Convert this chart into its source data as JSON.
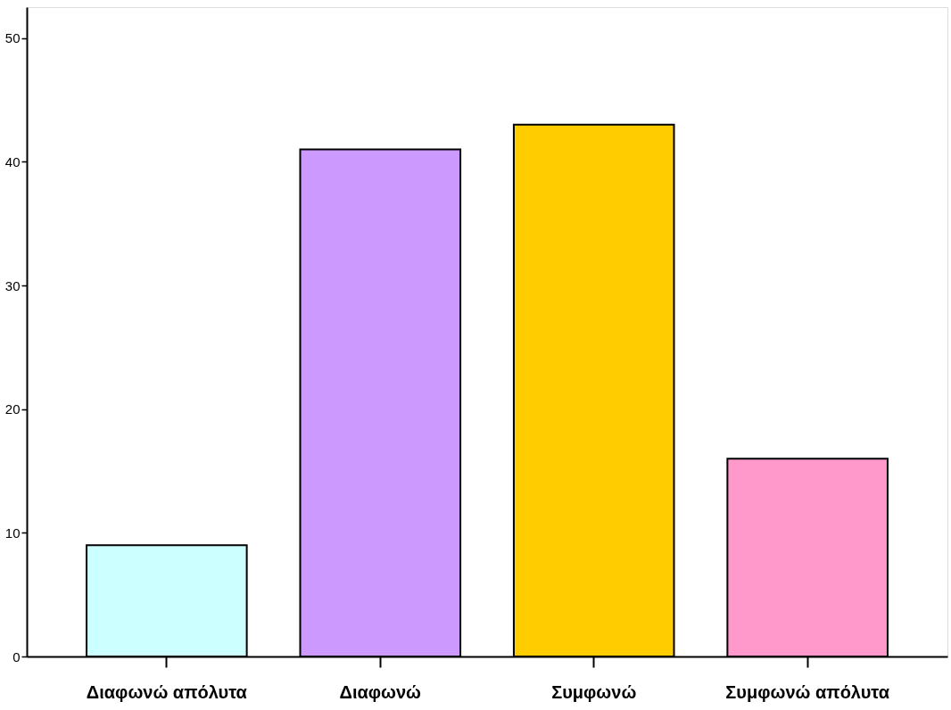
{
  "chart_data": {
    "type": "bar",
    "categories": [
      "Διαφωνώ απόλυτα",
      "Διαφωνώ",
      "Συμφωνώ",
      "Συμφωνώ απόλυτα"
    ],
    "values": [
      9,
      41,
      43,
      16
    ],
    "colors": [
      "#ccffff",
      "#cc99ff",
      "#ffcc00",
      "#ff99cc"
    ],
    "ylim": [
      0,
      52.5
    ],
    "yticks": [
      0,
      10,
      20,
      30,
      40,
      50
    ],
    "grid": false,
    "legend": false
  }
}
